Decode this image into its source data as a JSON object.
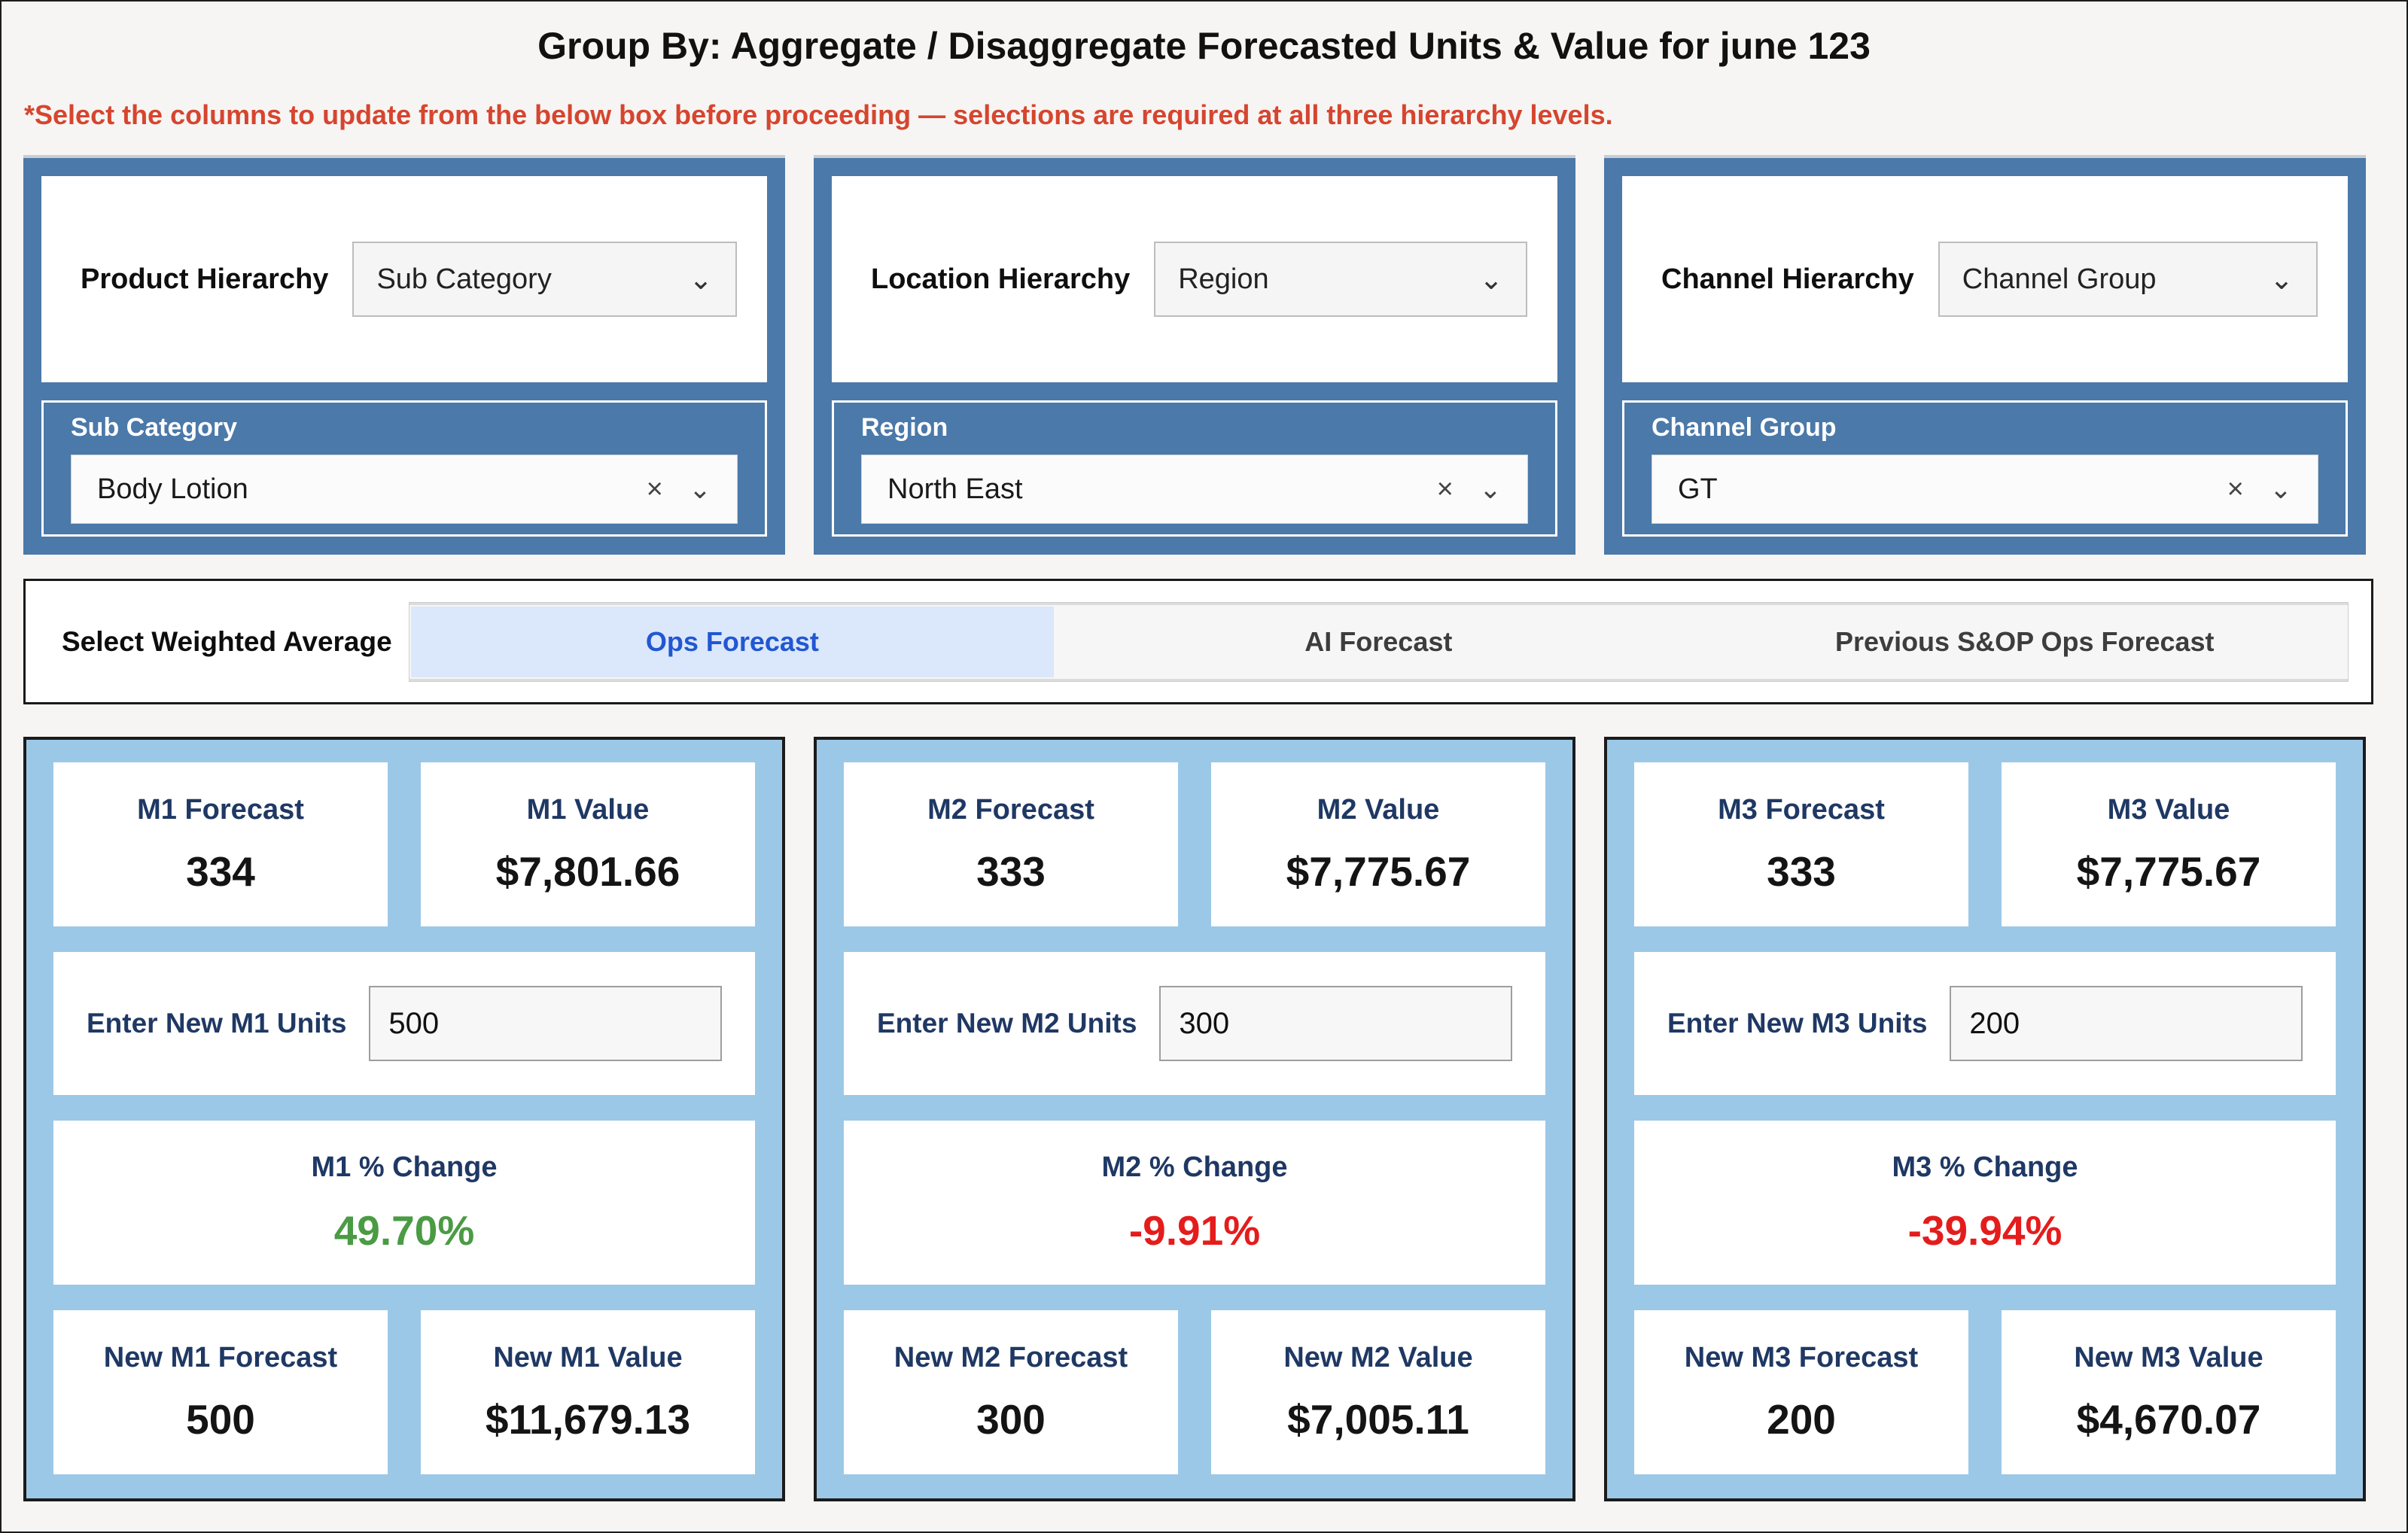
{
  "page": {
    "title": "Group By: Aggregate / Disaggregate Forecasted Units & Value for june 123",
    "warning": "*Select the columns to update from the below box before proceeding — selections are required at all three hierarchy levels."
  },
  "colors": {
    "steel_blue": "#4b79a9",
    "light_blue": "#9cc8e8",
    "navy": "#1f3864",
    "green": "#4a9b44",
    "red": "#e51c1c",
    "warning_red": "#d6452f",
    "selected_segment_bg": "#dbe7fb",
    "selected_segment_text": "#2157d2"
  },
  "icons": {
    "chevron": "⌄",
    "clear": "×"
  },
  "hierarchies": [
    {
      "label": "Product Hierarchy",
      "selected": "Sub Category",
      "sub_label": "Sub Category",
      "sub_selected": "Body Lotion"
    },
    {
      "label": "Location Hierarchy",
      "selected": "Region",
      "sub_label": "Region",
      "sub_selected": "North East"
    },
    {
      "label": "Channel Hierarchy",
      "selected": "Channel Group",
      "sub_label": "Channel Group",
      "sub_selected": "GT"
    }
  ],
  "weighted_average": {
    "label": "Select Weighted Average",
    "options": [
      {
        "label": "Ops Forecast",
        "selected": true
      },
      {
        "label": "AI Forecast",
        "selected": false
      },
      {
        "label": "Previous S&OP Ops Forecast",
        "selected": false
      }
    ]
  },
  "months": [
    {
      "forecast_label": "M1 Forecast",
      "forecast_value": "334",
      "value_label": "M1 Value",
      "value_value": "$7,801.66",
      "input_label": "Enter New M1 Units",
      "input_value": "500",
      "change_label": "M1 % Change",
      "change_value": "49.70%",
      "change_style": "color:#4a9b44",
      "new_forecast_label": "New M1 Forecast",
      "new_forecast_value": "500",
      "new_value_label": "New M1 Value",
      "new_value_value": "$11,679.13"
    },
    {
      "forecast_label": "M2 Forecast",
      "forecast_value": "333",
      "value_label": "M2 Value",
      "value_value": "$7,775.67",
      "input_label": "Enter New M2 Units",
      "input_value": "300",
      "change_label": "M2 % Change",
      "change_value": "-9.91%",
      "change_style": "color:#e51c1c",
      "new_forecast_label": "New M2 Forecast",
      "new_forecast_value": "300",
      "new_value_label": "New M2 Value",
      "new_value_value": "$7,005.11"
    },
    {
      "forecast_label": "M3 Forecast",
      "forecast_value": "333",
      "value_label": "M3 Value",
      "value_value": "$7,775.67",
      "input_label": "Enter New M3 Units",
      "input_value": "200",
      "change_label": "M3 % Change",
      "change_value": "-39.94%",
      "change_style": "color:#e51c1c",
      "new_forecast_label": "New M3 Forecast",
      "new_forecast_value": "200",
      "new_value_label": "New M3 Value",
      "new_value_value": "$4,670.07"
    }
  ]
}
